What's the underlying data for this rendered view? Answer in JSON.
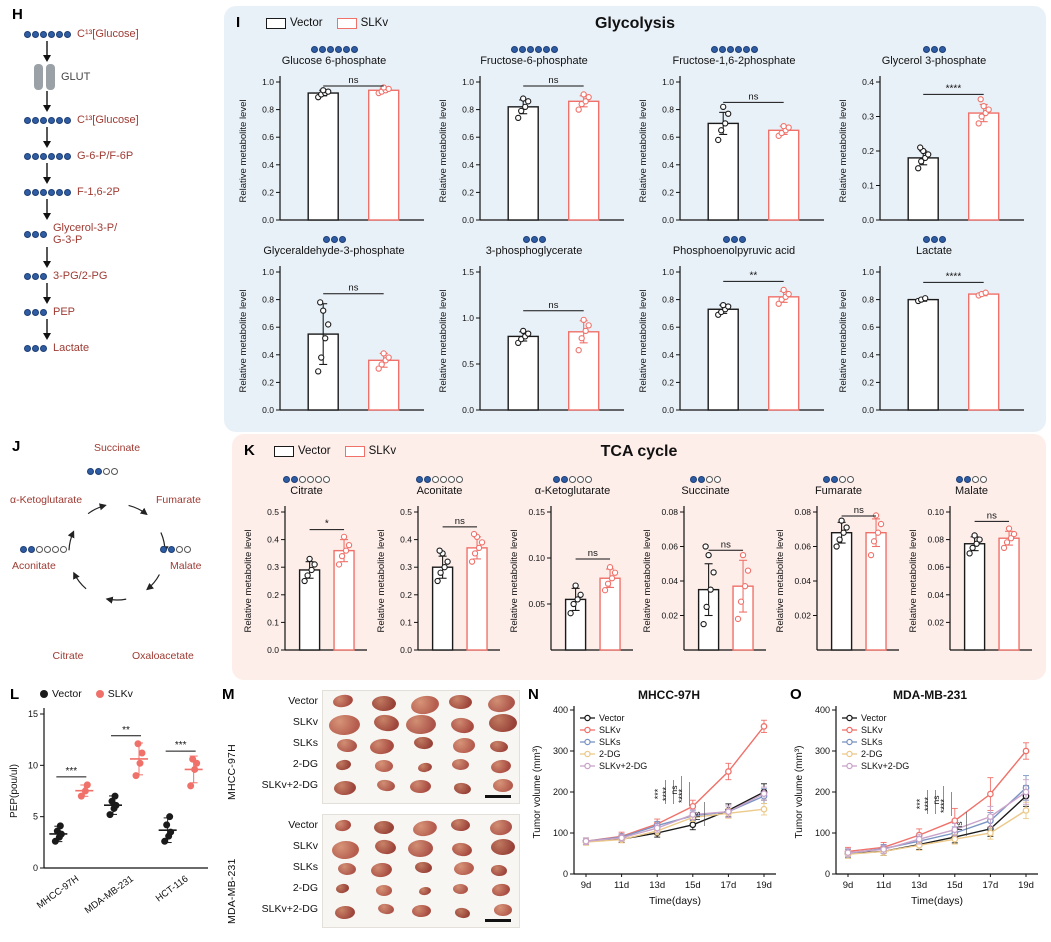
{
  "legend": {
    "vector": "Vector",
    "slkv": "SLKv"
  },
  "colors": {
    "blue_dot": "#2e5da6",
    "maroon": "#9e3a32",
    "vector": "#1a1a1a",
    "slkv": "#f0716a",
    "slks": "#7b95c4",
    "dg2": "#ecc98a",
    "slkv_dg2": "#c9a3c9",
    "panel_i_bg": "#e9f1f8",
    "panel_k_bg": "#fdeeea"
  },
  "panelH": {
    "letter": "H",
    "steps": [
      {
        "type": "node",
        "dots_blue": 6,
        "text": "C¹³[Glucose]"
      },
      {
        "type": "transporter",
        "text": "GLUT"
      },
      {
        "type": "node",
        "dots_blue": 6,
        "text": "C¹³[Glucose]"
      },
      {
        "type": "node",
        "dots_blue": 6,
        "text": "G-6-P/F-6P"
      },
      {
        "type": "node",
        "dots_blue": 6,
        "text": "F-1,6-2P"
      },
      {
        "type": "node",
        "dots_blue": 3,
        "text": "Glycerol-3-P/\nG-3-P"
      },
      {
        "type": "node",
        "dots_blue": 3,
        "text": "3-PG/2-PG"
      },
      {
        "type": "node",
        "dots_blue": 3,
        "text": "PEP"
      },
      {
        "type": "node",
        "dots_blue": 3,
        "text": "Lactate"
      }
    ]
  },
  "panelI": {
    "letter": "I",
    "title": "Glycolysis",
    "ylabel": "Relative metabolite level"
  },
  "panelJ": {
    "letter": "J",
    "nodes": [
      {
        "text": "Succinate",
        "dots_blue": 2,
        "dots_white": 2
      },
      {
        "text": "α-Ketoglutarate"
      },
      {
        "text": "Fumarate"
      },
      {
        "text": "Aconitate",
        "dots_blue": 2,
        "dots_white": 4
      },
      {
        "text": "Malate",
        "dots_blue": 2,
        "dots_white": 2
      },
      {
        "text": "Citrate"
      },
      {
        "text": "Oxaloacetate"
      }
    ]
  },
  "panelK": {
    "letter": "K",
    "title": "TCA cycle",
    "ylabel": "Relative metabolite level"
  },
  "panelL": {
    "letter": "L"
  },
  "panelM": {
    "letter": "M",
    "row_labels": [
      "Vector",
      "SLKv",
      "SLKs",
      "2-DG",
      "SLKv+2-DG"
    ],
    "tumors_per_row": 5,
    "groups": [
      {
        "name": "MHCC-97H",
        "sizes": [
          [
            24,
            15
          ],
          [
            28,
            18
          ],
          [
            20,
            13
          ],
          [
            17,
            11
          ],
          [
            19,
            12
          ]
        ]
      },
      {
        "name": "MDA-MB-231",
        "sizes": [
          [
            20,
            13
          ],
          [
            24,
            16
          ],
          [
            18,
            12
          ],
          [
            15,
            10
          ],
          [
            17,
            11
          ]
        ]
      }
    ],
    "palette": [
      {
        "base": "#a84b41",
        "hi": "#cf8a70"
      },
      {
        "base": "#984238",
        "hi": "#c07a60"
      },
      {
        "base": "#b55c4e",
        "hi": "#d69478"
      },
      {
        "base": "#9e453c",
        "hi": "#c98468"
      },
      {
        "base": "#ad554a",
        "hi": "#d18f74"
      }
    ]
  },
  "panelN": {
    "letter": "N"
  },
  "panelO": {
    "letter": "O"
  },
  "chart_data": [
    {
      "panel": "I",
      "type": "bar",
      "title": "Glucose 6-phosphate",
      "dots_blue": 6,
      "dots_white": 0,
      "sig": "ns",
      "ymax": 1.0,
      "yticks": [
        "0.0",
        "0.2",
        "0.4",
        "0.6",
        "0.8",
        "1.0"
      ],
      "series": [
        {
          "name": "Vector",
          "mean": 0.92,
          "err": 0.02,
          "points": [
            0.89,
            0.91,
            0.92,
            0.93,
            0.94
          ]
        },
        {
          "name": "SLKv",
          "mean": 0.94,
          "err": 0.015,
          "points": [
            0.92,
            0.93,
            0.94,
            0.95,
            0.96
          ]
        }
      ]
    },
    {
      "panel": "I",
      "type": "bar",
      "title": "Fructose-6-phosphate",
      "dots_blue": 6,
      "dots_white": 0,
      "sig": "ns",
      "ymax": 1.0,
      "yticks": [
        "0.0",
        "0.2",
        "0.4",
        "0.6",
        "0.8",
        "1.0"
      ],
      "series": [
        {
          "name": "Vector",
          "mean": 0.82,
          "err": 0.05,
          "points": [
            0.74,
            0.79,
            0.82,
            0.86,
            0.88
          ]
        },
        {
          "name": "SLKv",
          "mean": 0.86,
          "err": 0.04,
          "points": [
            0.8,
            0.84,
            0.86,
            0.89,
            0.91
          ]
        }
      ]
    },
    {
      "panel": "I",
      "type": "bar",
      "title": "Fructose-1,6-2phosphate",
      "dots_blue": 6,
      "dots_white": 0,
      "sig": "ns",
      "ymax": 1.0,
      "yticks": [
        "0.0",
        "0.2",
        "0.4",
        "0.6",
        "0.8",
        "1.0"
      ],
      "series": [
        {
          "name": "Vector",
          "mean": 0.7,
          "err": 0.08,
          "points": [
            0.58,
            0.65,
            0.7,
            0.77,
            0.82
          ]
        },
        {
          "name": "SLKv",
          "mean": 0.65,
          "err": 0.03,
          "points": [
            0.61,
            0.63,
            0.65,
            0.67,
            0.68
          ]
        }
      ]
    },
    {
      "panel": "I",
      "type": "bar",
      "title": "Glycerol 3-phosphate",
      "dots_blue": 3,
      "dots_white": 0,
      "sig": "****",
      "ymax": 0.4,
      "yticks": [
        "0.0",
        "0.1",
        "0.2",
        "0.3",
        "0.4"
      ],
      "series": [
        {
          "name": "Vector",
          "mean": 0.18,
          "err": 0.02,
          "points": [
            0.15,
            0.17,
            0.18,
            0.19,
            0.2,
            0.21
          ]
        },
        {
          "name": "SLKv",
          "mean": 0.31,
          "err": 0.025,
          "points": [
            0.28,
            0.3,
            0.31,
            0.32,
            0.33,
            0.35
          ]
        }
      ]
    },
    {
      "panel": "I",
      "type": "bar",
      "title": "Glyceraldehyde-3-phosphate",
      "dots_blue": 3,
      "dots_white": 0,
      "sig": "ns",
      "ymax": 1.0,
      "yticks": [
        "0.0",
        "0.2",
        "0.4",
        "0.6",
        "0.8",
        "1.0"
      ],
      "series": [
        {
          "name": "Vector",
          "mean": 0.55,
          "err": 0.22,
          "points": [
            0.28,
            0.38,
            0.52,
            0.62,
            0.72,
            0.78
          ]
        },
        {
          "name": "SLKv",
          "mean": 0.36,
          "err": 0.05,
          "points": [
            0.3,
            0.33,
            0.36,
            0.38,
            0.41
          ]
        }
      ]
    },
    {
      "panel": "I",
      "type": "bar",
      "title": "3-phosphoglycerate",
      "dots_blue": 3,
      "dots_white": 0,
      "sig": "ns",
      "ymax": 1.5,
      "yticks": [
        "0.0",
        "0.5",
        "1.0",
        "1.5"
      ],
      "series": [
        {
          "name": "Vector",
          "mean": 0.8,
          "err": 0.05,
          "points": [
            0.73,
            0.77,
            0.8,
            0.83,
            0.86
          ]
        },
        {
          "name": "SLKv",
          "mean": 0.85,
          "err": 0.12,
          "points": [
            0.65,
            0.78,
            0.86,
            0.92,
            0.98
          ]
        }
      ]
    },
    {
      "panel": "I",
      "type": "bar",
      "title": "Phosphoenolpyruvic acid",
      "dots_blue": 3,
      "dots_white": 0,
      "sig": "**",
      "ymax": 1.0,
      "yticks": [
        "0.0",
        "0.2",
        "0.4",
        "0.6",
        "0.8",
        "1.0"
      ],
      "series": [
        {
          "name": "Vector",
          "mean": 0.73,
          "err": 0.03,
          "points": [
            0.69,
            0.71,
            0.73,
            0.75,
            0.76
          ]
        },
        {
          "name": "SLKv",
          "mean": 0.82,
          "err": 0.04,
          "points": [
            0.77,
            0.8,
            0.82,
            0.84,
            0.87
          ]
        }
      ]
    },
    {
      "panel": "I",
      "type": "bar",
      "title": "Lactate",
      "dots_blue": 3,
      "dots_white": 0,
      "sig": "****",
      "ymax": 1.0,
      "yticks": [
        "0.0",
        "0.2",
        "0.4",
        "0.6",
        "0.8",
        "1.0"
      ],
      "series": [
        {
          "name": "Vector",
          "mean": 0.8,
          "err": 0.012,
          "points": [
            0.79,
            0.8,
            0.81
          ]
        },
        {
          "name": "SLKv",
          "mean": 0.84,
          "err": 0.012,
          "points": [
            0.83,
            0.84,
            0.85
          ]
        }
      ]
    },
    {
      "panel": "K",
      "type": "bar",
      "title": "Citrate",
      "dots_blue": 2,
      "dots_white": 4,
      "sig": "*",
      "ymax": 0.5,
      "yticks": [
        "0.0",
        "0.1",
        "0.2",
        "0.3",
        "0.4",
        "0.5"
      ],
      "series": [
        {
          "name": "Vector",
          "mean": 0.29,
          "err": 0.03,
          "points": [
            0.25,
            0.27,
            0.29,
            0.31,
            0.33
          ]
        },
        {
          "name": "SLKv",
          "mean": 0.36,
          "err": 0.04,
          "points": [
            0.31,
            0.34,
            0.36,
            0.38,
            0.41
          ]
        }
      ]
    },
    {
      "panel": "K",
      "type": "bar",
      "title": "Aconitate",
      "dots_blue": 2,
      "dots_white": 4,
      "sig": "ns",
      "ymax": 0.5,
      "yticks": [
        "0.0",
        "0.1",
        "0.2",
        "0.3",
        "0.4",
        "0.5"
      ],
      "series": [
        {
          "name": "Vector",
          "mean": 0.3,
          "err": 0.04,
          "points": [
            0.25,
            0.28,
            0.3,
            0.32,
            0.35,
            0.36
          ]
        },
        {
          "name": "SLKv",
          "mean": 0.37,
          "err": 0.04,
          "points": [
            0.32,
            0.35,
            0.37,
            0.39,
            0.41,
            0.42
          ]
        }
      ]
    },
    {
      "panel": "K",
      "type": "bar",
      "title": "α-Ketoglutarate",
      "dots_blue": 2,
      "dots_white": 3,
      "sig": "ns",
      "ymax": 0.15,
      "yticks": [
        "0.05",
        "0.10",
        "0.15"
      ],
      "series": [
        {
          "name": "Vector",
          "mean": 0.055,
          "err": 0.012,
          "points": [
            0.04,
            0.05,
            0.055,
            0.06,
            0.07
          ]
        },
        {
          "name": "SLKv",
          "mean": 0.078,
          "err": 0.01,
          "points": [
            0.065,
            0.072,
            0.078,
            0.084,
            0.09
          ]
        }
      ]
    },
    {
      "panel": "K",
      "type": "bar",
      "title": "Succinate",
      "dots_blue": 2,
      "dots_white": 2,
      "sig": "ns",
      "ymax": 0.08,
      "yticks": [
        "0.02",
        "0.04",
        "0.06",
        "0.08"
      ],
      "series": [
        {
          "name": "Vector",
          "mean": 0.035,
          "err": 0.015,
          "points": [
            0.015,
            0.025,
            0.035,
            0.045,
            0.055,
            0.06
          ]
        },
        {
          "name": "SLKv",
          "mean": 0.037,
          "err": 0.015,
          "points": [
            0.018,
            0.028,
            0.037,
            0.046,
            0.055
          ]
        }
      ]
    },
    {
      "panel": "K",
      "type": "bar",
      "title": "Fumarate",
      "dots_blue": 2,
      "dots_white": 2,
      "sig": "ns",
      "ymax": 0.08,
      "yticks": [
        "0.02",
        "0.04",
        "0.06",
        "0.08"
      ],
      "series": [
        {
          "name": "Vector",
          "mean": 0.068,
          "err": 0.006,
          "points": [
            0.06,
            0.064,
            0.068,
            0.071,
            0.075
          ]
        },
        {
          "name": "SLKv",
          "mean": 0.068,
          "err": 0.008,
          "points": [
            0.055,
            0.063,
            0.068,
            0.073,
            0.078
          ]
        }
      ]
    },
    {
      "panel": "K",
      "type": "bar",
      "title": "Malate",
      "dots_blue": 2,
      "dots_white": 2,
      "sig": "ns",
      "ymax": 0.1,
      "yticks": [
        "0.02",
        "0.04",
        "0.06",
        "0.08",
        "0.10"
      ],
      "series": [
        {
          "name": "Vector",
          "mean": 0.077,
          "err": 0.005,
          "points": [
            0.07,
            0.074,
            0.077,
            0.08,
            0.083
          ]
        },
        {
          "name": "SLKv",
          "mean": 0.081,
          "err": 0.005,
          "points": [
            0.074,
            0.078,
            0.081,
            0.084,
            0.088
          ]
        }
      ]
    },
    {
      "panel": "L",
      "type": "scatter",
      "ylabel": "PEP(pou/ul)",
      "ymax": 15,
      "yticks": [
        "0",
        "5",
        "10",
        "15"
      ],
      "groups": [
        "MHCC-97H",
        "MDA-MB-231",
        "HCT-116"
      ],
      "sig": [
        "***",
        "**",
        "***"
      ],
      "series": [
        {
          "name": "Vector",
          "points": [
            [
              2.6,
              3.0,
              3.3,
              3.6,
              4.1
            ],
            [
              5.2,
              5.8,
              6.1,
              6.5,
              7.0
            ],
            [
              2.6,
              3.1,
              3.5,
              4.2,
              5.0
            ]
          ]
        },
        {
          "name": "SLKv",
          "points": [
            [
              7.0,
              7.5,
              8.1
            ],
            [
              9.0,
              10.2,
              11.2,
              12.1
            ],
            [
              8.0,
              9.6,
              10.2,
              10.6
            ]
          ]
        }
      ]
    },
    {
      "panel": "N",
      "type": "line",
      "title": "MHCC-97H",
      "ylabel": "Tumor volume (mm³)",
      "xlabel": "Time(days)",
      "x": [
        "9d",
        "11d",
        "13d",
        "15d",
        "17d",
        "19d"
      ],
      "ymax": 400,
      "yticks": [
        "0",
        "100",
        "200",
        "300",
        "400"
      ],
      "sig": [
        "***",
        "****",
        "ns",
        "****",
        "ns"
      ],
      "series": [
        {
          "name": "Vector",
          "values": [
            80,
            85,
            100,
            120,
            155,
            200
          ],
          "err": [
            8,
            8,
            10,
            12,
            16,
            20
          ]
        },
        {
          "name": "SLKv",
          "values": [
            80,
            92,
            122,
            165,
            250,
            360
          ],
          "err": [
            8,
            10,
            12,
            15,
            20,
            15
          ]
        },
        {
          "name": "SLKs",
          "values": [
            80,
            90,
            118,
            142,
            152,
            190
          ],
          "err": [
            8,
            8,
            10,
            12,
            14,
            18
          ]
        },
        {
          "name": "2-DG",
          "values": [
            78,
            84,
            105,
            138,
            148,
            158
          ],
          "err": [
            8,
            8,
            10,
            10,
            12,
            14
          ]
        },
        {
          "name": "SLKv+2-DG",
          "values": [
            80,
            88,
            112,
            145,
            152,
            196
          ],
          "err": [
            8,
            8,
            10,
            12,
            14,
            16
          ]
        }
      ]
    },
    {
      "panel": "O",
      "type": "line",
      "title": "MDA-MB-231",
      "ylabel": "Tumor volume (mm³)",
      "xlabel": "Time(days)",
      "x": [
        "9d",
        "11d",
        "13d",
        "15d",
        "17d",
        "19d"
      ],
      "ymax": 400,
      "yticks": [
        "0",
        "100",
        "200",
        "300",
        "400"
      ],
      "sig": [
        "***",
        "****",
        "ns",
        "****",
        "ns"
      ],
      "series": [
        {
          "name": "Vector",
          "values": [
            50,
            55,
            72,
            90,
            110,
            190
          ],
          "err": [
            10,
            10,
            12,
            14,
            18,
            25
          ]
        },
        {
          "name": "SLKv",
          "values": [
            55,
            65,
            95,
            130,
            195,
            300
          ],
          "err": [
            10,
            12,
            15,
            30,
            40,
            20
          ]
        },
        {
          "name": "SLKs",
          "values": [
            50,
            62,
            80,
            100,
            130,
            210
          ],
          "err": [
            10,
            10,
            12,
            15,
            20,
            30
          ]
        },
        {
          "name": "2-DG",
          "values": [
            48,
            55,
            70,
            85,
            100,
            155
          ],
          "err": [
            10,
            10,
            12,
            12,
            15,
            20
          ]
        },
        {
          "name": "SLKv+2-DG",
          "values": [
            52,
            60,
            85,
            108,
            140,
            200
          ],
          "err": [
            10,
            10,
            12,
            15,
            25,
            30
          ]
        }
      ]
    }
  ]
}
